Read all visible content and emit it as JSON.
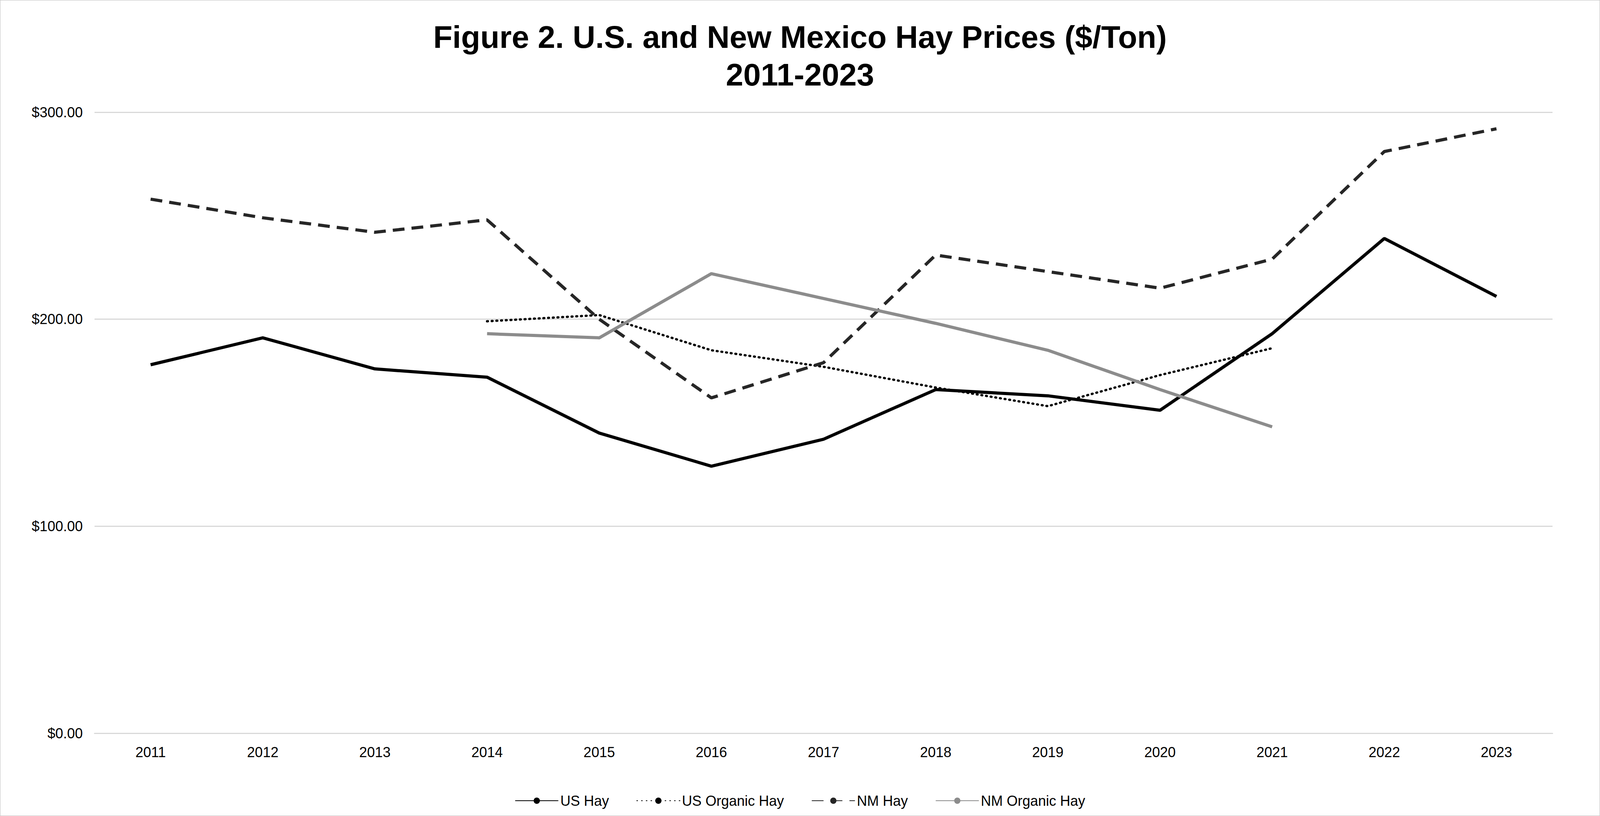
{
  "chart_data": {
    "type": "line",
    "title": "Figure 2. U.S. and New Mexico Hay Prices ($/Ton)\n2011-2023",
    "categories": [
      "2011",
      "2012",
      "2013",
      "2014",
      "2015",
      "2016",
      "2017",
      "2018",
      "2019",
      "2020",
      "2021",
      "2022",
      "2023"
    ],
    "series": [
      {
        "name": "US Hay",
        "color": "#000000",
        "line_style": "solid",
        "values": [
          178,
          191,
          176,
          172,
          145,
          129,
          142,
          166,
          163,
          156,
          193,
          239,
          211
        ]
      },
      {
        "name": "US Organic Hay",
        "color": "#000000",
        "line_style": "dotted",
        "values": [
          null,
          null,
          null,
          199,
          202,
          185,
          177,
          167,
          158,
          173,
          186,
          null,
          null
        ]
      },
      {
        "name": "NM Hay",
        "color": "#262626",
        "line_style": "dashed",
        "values": [
          258,
          249,
          242,
          248,
          200,
          162,
          179,
          231,
          223,
          215,
          229,
          281,
          292
        ]
      },
      {
        "name": "NM Organic Hay",
        "color": "#8c8c8c",
        "line_style": "solid",
        "values": [
          null,
          null,
          null,
          193,
          191,
          222,
          210,
          198,
          185,
          166,
          148,
          null,
          null
        ]
      }
    ],
    "ylim": [
      0,
      300
    ],
    "yticks": [
      {
        "value": 0,
        "label": "$0.00"
      },
      {
        "value": 100,
        "label": "$100.00"
      },
      {
        "value": 200,
        "label": "$200.00"
      },
      {
        "value": 300,
        "label": "$300.00"
      }
    ],
    "grid": true,
    "legend": "bottom"
  }
}
